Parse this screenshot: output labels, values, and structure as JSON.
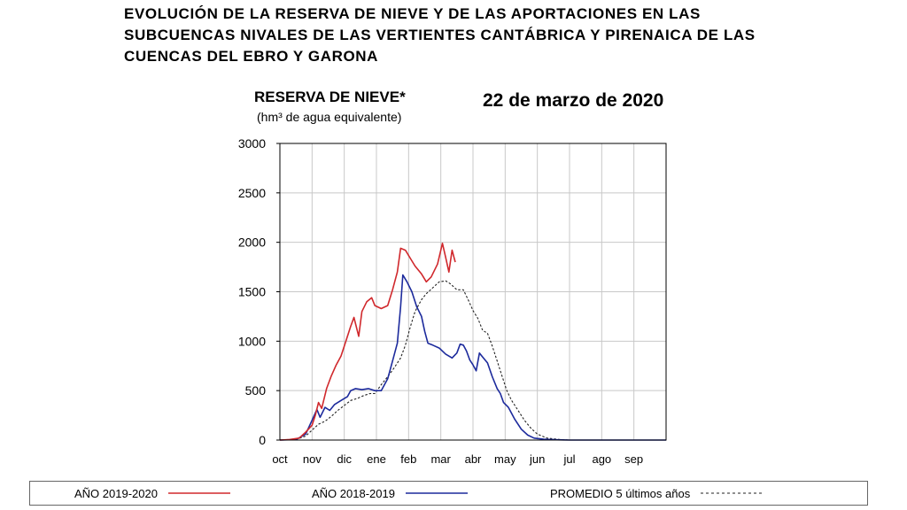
{
  "header": {
    "title_lines": [
      "EVOLUCIÓN DE LA RESERVA DE NIEVE Y DE LAS APORTACIONES EN LAS",
      "SUBCUENCAS NIVALES DE LAS VERTIENTES CANTÁBRICA Y PIRENAICA DE LAS",
      "CUENCAS  DEL EBRO Y GARONA"
    ]
  },
  "chart_data": {
    "type": "line",
    "title": "RESERVA DE NIEVE*",
    "subtitle": "(hm³ de agua equivalente)",
    "date": "22 de marzo de 2020",
    "xlabel": "",
    "ylabel": "",
    "categories": [
      "oct",
      "nov",
      "dic",
      "ene",
      "feb",
      "mar",
      "abr",
      "may",
      "jun",
      "jul",
      "ago",
      "sep"
    ],
    "ylim": [
      0,
      3000
    ],
    "yticks": [
      0,
      500,
      1000,
      1500,
      2000,
      2500,
      3000
    ],
    "grid": true,
    "legend_position": "bottom",
    "series": [
      {
        "name": "AÑO 2019-2020",
        "color": "#d0282c",
        "style": "solid",
        "points": [
          [
            0,
            0
          ],
          [
            0.3,
            5
          ],
          [
            0.6,
            20
          ],
          [
            0.8,
            80
          ],
          [
            1,
            150
          ],
          [
            1.1,
            250
          ],
          [
            1.2,
            380
          ],
          [
            1.3,
            320
          ],
          [
            1.45,
            520
          ],
          [
            1.6,
            650
          ],
          [
            1.75,
            760
          ],
          [
            1.9,
            850
          ],
          [
            2,
            950
          ],
          [
            2.1,
            1050
          ],
          [
            2.2,
            1150
          ],
          [
            2.3,
            1240
          ],
          [
            2.45,
            1050
          ],
          [
            2.55,
            1300
          ],
          [
            2.7,
            1400
          ],
          [
            2.85,
            1440
          ],
          [
            2.95,
            1360
          ],
          [
            3.15,
            1330
          ],
          [
            3.35,
            1360
          ],
          [
            3.5,
            1520
          ],
          [
            3.65,
            1700
          ],
          [
            3.75,
            1940
          ],
          [
            3.9,
            1920
          ],
          [
            4.05,
            1840
          ],
          [
            4.2,
            1760
          ],
          [
            4.4,
            1680
          ],
          [
            4.55,
            1600
          ],
          [
            4.7,
            1650
          ],
          [
            4.9,
            1780
          ],
          [
            5.05,
            1990
          ],
          [
            5.15,
            1850
          ],
          [
            5.25,
            1700
          ],
          [
            5.35,
            1920
          ],
          [
            5.45,
            1800
          ]
        ]
      },
      {
        "name": "AÑO 2018-2019",
        "color": "#1c2a9c",
        "style": "solid",
        "points": [
          [
            0,
            0
          ],
          [
            0.5,
            5
          ],
          [
            0.8,
            60
          ],
          [
            1,
            200
          ],
          [
            1.15,
            310
          ],
          [
            1.25,
            230
          ],
          [
            1.4,
            330
          ],
          [
            1.55,
            300
          ],
          [
            1.7,
            360
          ],
          [
            1.85,
            390
          ],
          [
            2,
            420
          ],
          [
            2.1,
            440
          ],
          [
            2.2,
            500
          ],
          [
            2.35,
            520
          ],
          [
            2.55,
            510
          ],
          [
            2.75,
            520
          ],
          [
            2.95,
            500
          ],
          [
            3.15,
            500
          ],
          [
            3.35,
            620
          ],
          [
            3.5,
            800
          ],
          [
            3.65,
            980
          ],
          [
            3.75,
            1350
          ],
          [
            3.82,
            1670
          ],
          [
            3.95,
            1600
          ],
          [
            4.1,
            1500
          ],
          [
            4.25,
            1350
          ],
          [
            4.4,
            1250
          ],
          [
            4.5,
            1100
          ],
          [
            4.6,
            980
          ],
          [
            4.75,
            960
          ],
          [
            4.95,
            930
          ],
          [
            5.15,
            870
          ],
          [
            5.35,
            830
          ],
          [
            5.5,
            880
          ],
          [
            5.6,
            970
          ],
          [
            5.7,
            960
          ],
          [
            5.8,
            900
          ],
          [
            5.9,
            810
          ],
          [
            6,
            760
          ],
          [
            6.1,
            700
          ],
          [
            6.2,
            880
          ],
          [
            6.3,
            840
          ],
          [
            6.45,
            780
          ],
          [
            6.6,
            640
          ],
          [
            6.75,
            520
          ],
          [
            6.85,
            470
          ],
          [
            6.95,
            380
          ],
          [
            7.1,
            330
          ],
          [
            7.3,
            210
          ],
          [
            7.5,
            110
          ],
          [
            7.7,
            50
          ],
          [
            7.9,
            20
          ],
          [
            8.2,
            8
          ],
          [
            8.6,
            3
          ],
          [
            9,
            0
          ],
          [
            12,
            0
          ]
        ]
      },
      {
        "name": "PROMEDIO 5 últimos años",
        "color": "#222222",
        "style": "dashed",
        "points": [
          [
            0,
            0
          ],
          [
            0.5,
            5
          ],
          [
            0.8,
            40
          ],
          [
            1,
            100
          ],
          [
            1.2,
            160
          ],
          [
            1.4,
            190
          ],
          [
            1.6,
            240
          ],
          [
            1.8,
            300
          ],
          [
            2,
            350
          ],
          [
            2.2,
            400
          ],
          [
            2.4,
            420
          ],
          [
            2.6,
            450
          ],
          [
            2.8,
            470
          ],
          [
            2.95,
            470
          ],
          [
            3.15,
            560
          ],
          [
            3.35,
            640
          ],
          [
            3.55,
            730
          ],
          [
            3.75,
            830
          ],
          [
            3.9,
            960
          ],
          [
            4.05,
            1140
          ],
          [
            4.2,
            1300
          ],
          [
            4.4,
            1420
          ],
          [
            4.55,
            1480
          ],
          [
            4.75,
            1540
          ],
          [
            4.95,
            1600
          ],
          [
            5.15,
            1610
          ],
          [
            5.3,
            1580
          ],
          [
            5.5,
            1520
          ],
          [
            5.7,
            1520
          ],
          [
            5.85,
            1420
          ],
          [
            6,
            1310
          ],
          [
            6.15,
            1230
          ],
          [
            6.3,
            1110
          ],
          [
            6.45,
            1080
          ],
          [
            6.6,
            950
          ],
          [
            6.75,
            800
          ],
          [
            6.9,
            650
          ],
          [
            7.05,
            500
          ],
          [
            7.2,
            400
          ],
          [
            7.4,
            300
          ],
          [
            7.6,
            200
          ],
          [
            7.8,
            120
          ],
          [
            8,
            60
          ],
          [
            8.3,
            20
          ],
          [
            8.7,
            5
          ],
          [
            9,
            0
          ],
          [
            12,
            0
          ]
        ]
      }
    ]
  }
}
